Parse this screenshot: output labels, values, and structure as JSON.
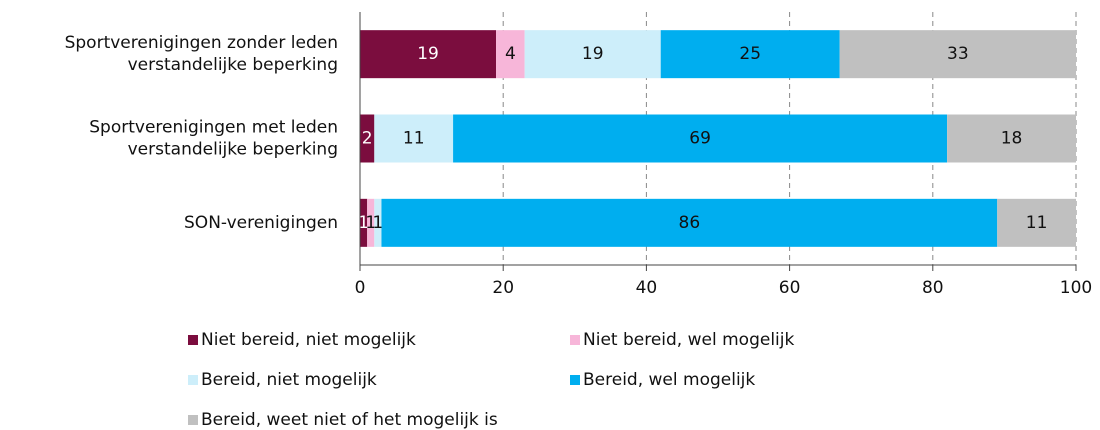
{
  "chart_data": {
    "type": "stacked_barh",
    "categories": [
      "Sportverenigingen zonder leden verstandelijke beperking",
      "Sportverenigingen met leden verstandelijke beperking",
      "SON-verenigingen"
    ],
    "series": [
      {
        "name": "Niet bereid, niet mogelijk",
        "color": "#7b0d3e",
        "values": [
          19,
          2,
          1
        ]
      },
      {
        "name": "Niet bereid, wel mogelijk",
        "color": "#f7b6d9",
        "values": [
          4,
          0,
          1
        ],
        "value_labels": [
          "4",
          null,
          "1"
        ]
      },
      {
        "name": "Bereid, niet mogelijk",
        "color": "#cdeefa",
        "values": [
          19,
          11,
          1
        ]
      },
      {
        "name": "Bereid, wel mogelijk",
        "color": "#00aeef",
        "values": [
          25,
          69,
          86
        ]
      },
      {
        "name": "Bereid, weet niet of het mogelijk is",
        "color": "#c0c0c0",
        "values": [
          33,
          18,
          11
        ]
      }
    ],
    "xlim": [
      0,
      100
    ],
    "xticks": [
      0,
      20,
      40,
      60,
      80,
      100
    ],
    "grid": true
  }
}
